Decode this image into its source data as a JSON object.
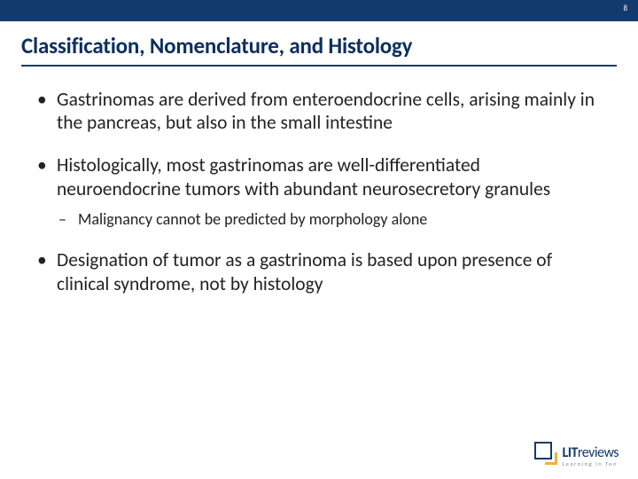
{
  "page_number": "8",
  "colors": {
    "top_bar": "#133a6d",
    "title": "#0d2f5e",
    "underline": "#133a6d",
    "body_text": "#232323",
    "logo_primary": "#133a6d",
    "logo_accent": "#f2b233",
    "logo_tag": "#7d8a99"
  },
  "title": "Classification, Nomenclature, and Histology",
  "bullets": [
    {
      "text": "Gastrinomas are derived from enteroendocrine cells, arising mainly in the pancreas, but also in the small intestine",
      "subs": []
    },
    {
      "text": "Histologically, most gastrinomas are well-differentiated neuroendocrine tumors with abundant neurosecretory granules",
      "subs": [
        "Malignancy cannot be predicted by morphology alone"
      ]
    },
    {
      "text": "Designation of tumor as a gastrinoma is based upon presence of clinical syndrome, not by histology",
      "subs": []
    }
  ],
  "logo": {
    "brand_prefix": "LIT",
    "brand_suffix": "reviews",
    "tagline": "Learning In Ten"
  }
}
